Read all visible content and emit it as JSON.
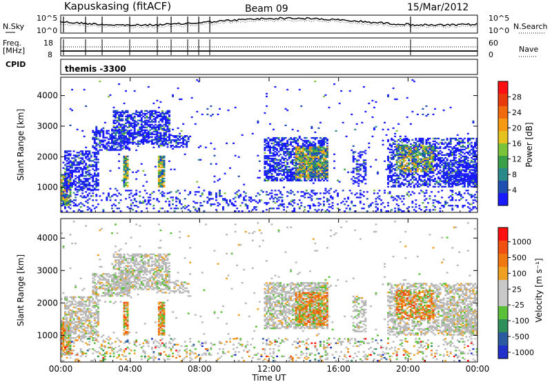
{
  "header": {
    "station": "Kapuskasing (fitACF)",
    "beam": "Beam 09",
    "date": "15/Mar/2012"
  },
  "summary_panel": {
    "left_label_top": "N.Sky",
    "left_label_freq_1": "Freq.",
    "left_label_freq_2": "[MHz]",
    "left_label_cpid": "CPID",
    "right_label_top": "N.Search",
    "right_label_bottom": "Nave",
    "sky_ticks": [
      "10^5",
      "10^0"
    ],
    "search_ticks": [
      "10^5",
      "10^0"
    ],
    "freq_ticks": [
      "18",
      "8"
    ],
    "nave_ticks": [
      "60",
      "0"
    ],
    "cpid_text": "themis -3300"
  },
  "chart_data": [
    {
      "type": "heatmap",
      "name": "power",
      "ylabel": "Slant Range [km]",
      "xlabel": "Time UT",
      "x_ticks": [
        "00:00",
        "04:00",
        "08:00",
        "12:00",
        "16:00",
        "20:00",
        "00:00"
      ],
      "y_ticks": [
        "1000",
        "2000",
        "3000",
        "4000"
      ],
      "ylim": [
        180,
        4600
      ],
      "xlim_hours": [
        0,
        24
      ],
      "colorbar": {
        "label": "Power [dB]",
        "ticks": [
          "4",
          "8",
          "12",
          "16",
          "20",
          "24",
          "28"
        ],
        "colors": [
          "#1a1aff",
          "#1f4fb0",
          "#2a8a8a",
          "#3aa048",
          "#7ac23a",
          "#e6c21e",
          "#f59a12",
          "#f06a0e",
          "#e83a0a",
          "#ff1010"
        ]
      }
    },
    {
      "type": "heatmap",
      "name": "velocity",
      "ylabel": "Slant Range [km]",
      "xlabel": "Time UT",
      "x_ticks": [
        "00:00",
        "04:00",
        "08:00",
        "12:00",
        "16:00",
        "20:00",
        "00:00"
      ],
      "y_ticks": [
        "1000",
        "2000",
        "3000",
        "4000"
      ],
      "ylim": [
        180,
        4600
      ],
      "xlim_hours": [
        0,
        24
      ],
      "colorbar": {
        "label": "Velocity [m s⁻¹]",
        "ticks": [
          "1000",
          "500",
          "100",
          "25",
          "-25",
          "-100",
          "-500",
          "-1000"
        ],
        "colors": [
          "#2030c8",
          "#2a5aa0",
          "#2f8f5a",
          "#5ac038",
          "#c8c8c8",
          "#c8c8c8",
          "#f0a020",
          "#f07810",
          "#f05010",
          "#ff1010"
        ]
      }
    }
  ],
  "colors": {
    "background": "#ffffff",
    "frame": "#000000",
    "ground_scatter": "#b8b8b8"
  }
}
